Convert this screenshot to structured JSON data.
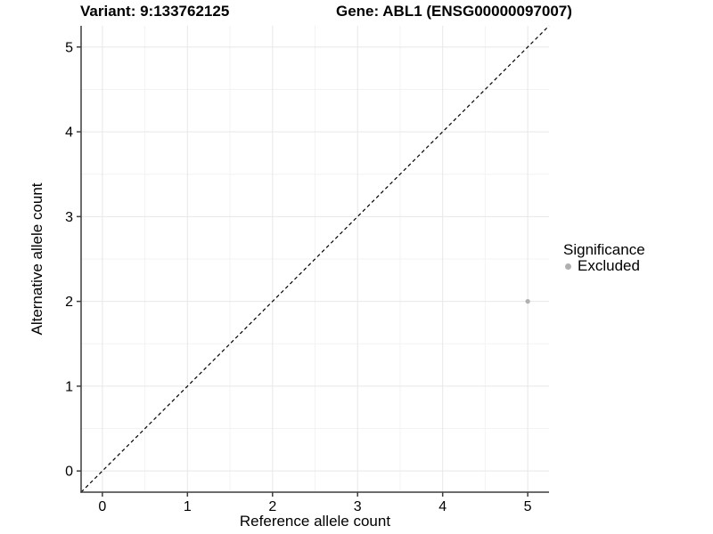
{
  "chart_data": {
    "type": "scatter",
    "title_left": "Variant: 9:133762125",
    "title_right": "Gene: ABL1 (ENSG00000097007)",
    "xlabel": "Reference allele count",
    "ylabel": "Alternative allele count",
    "xlim": [
      -0.25,
      5.25
    ],
    "ylim": [
      -0.25,
      5.25
    ],
    "xticks": [
      0,
      1,
      2,
      3,
      4,
      5
    ],
    "yticks": [
      0,
      1,
      2,
      3,
      4,
      5
    ],
    "xminor": [
      0.5,
      1.5,
      2.5,
      3.5,
      4.5
    ],
    "yminor": [
      0.5,
      1.5,
      2.5,
      3.5,
      4.5
    ],
    "grid": true,
    "identity_line": {
      "style": "dashed",
      "color": "#000000",
      "from": [
        -0.25,
        -0.25
      ],
      "to": [
        5.25,
        5.25
      ]
    },
    "series": [
      {
        "name": "Excluded",
        "color": "#b0b0b0",
        "points": [
          {
            "x": 5,
            "y": 2
          }
        ]
      }
    ],
    "legend": {
      "title": "Significance",
      "position": "right",
      "entries": [
        {
          "label": "Excluded",
          "color": "#b0b0b0"
        }
      ]
    },
    "colors": {
      "grid_major": "#e7e7e7",
      "grid_minor": "#f3f3f3",
      "axis_line": "#3d3d3d",
      "tick": "#3d3d3d",
      "text": "#000000",
      "point": "#b0b0b0"
    }
  }
}
